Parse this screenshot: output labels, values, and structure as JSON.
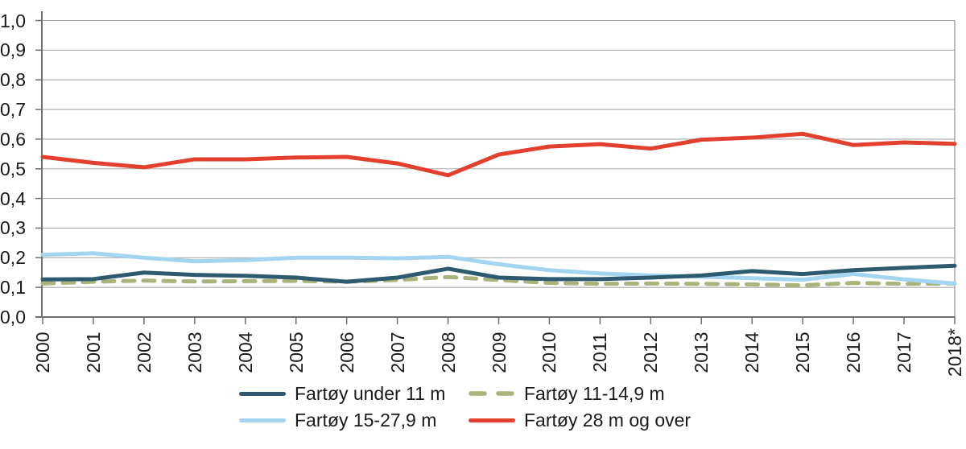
{
  "chart_data": {
    "type": "line",
    "title": "",
    "xlabel": "",
    "ylabel": "",
    "categories": [
      "2000",
      "2001",
      "2002",
      "2003",
      "2004",
      "2005",
      "2006",
      "2007",
      "2008",
      "2009",
      "2010",
      "2011",
      "2012",
      "2013",
      "2014",
      "2015",
      "2016",
      "2017",
      "2018*"
    ],
    "series": [
      {
        "name": "Fartøy under 11 m",
        "color": "#2E5A70",
        "dash": "solid",
        "values": [
          0.127,
          0.128,
          0.15,
          0.142,
          0.139,
          0.133,
          0.119,
          0.133,
          0.163,
          0.133,
          0.128,
          0.128,
          0.133,
          0.14,
          0.155,
          0.145,
          0.158,
          0.166,
          0.173
        ]
      },
      {
        "name": "Fartøy 11-14,9 m",
        "color": "#A9B47C",
        "dash": "dashed",
        "values": [
          0.113,
          0.119,
          0.123,
          0.12,
          0.121,
          0.122,
          0.119,
          0.125,
          0.135,
          0.125,
          0.115,
          0.112,
          0.113,
          0.112,
          0.11,
          0.107,
          0.115,
          0.112,
          0.113
        ]
      },
      {
        "name": "Fartøy 15-27,9 m",
        "color": "#A3D5F0",
        "dash": "solid",
        "values": [
          0.21,
          0.215,
          0.2,
          0.188,
          0.192,
          0.2,
          0.2,
          0.198,
          0.203,
          0.178,
          0.158,
          0.147,
          0.14,
          0.136,
          0.131,
          0.126,
          0.145,
          0.127,
          0.113
        ]
      },
      {
        "name": "Fartøy 28 m og over",
        "color": "#E2402C",
        "dash": "solid",
        "values": [
          0.54,
          0.52,
          0.505,
          0.532,
          0.532,
          0.538,
          0.54,
          0.518,
          0.478,
          0.548,
          0.575,
          0.583,
          0.568,
          0.598,
          0.605,
          0.618,
          0.58,
          0.589,
          0.584
        ]
      }
    ],
    "ylim": [
      0.0,
      1.0
    ],
    "ytick_step": 0.1,
    "ytick_labels": [
      "0,0",
      "0,1",
      "0,2",
      "0,3",
      "0,4",
      "0,5",
      "0,6",
      "0,7",
      "0,8",
      "0,9",
      "1,0"
    ],
    "grid": true,
    "legend_position": "bottom"
  },
  "style": {
    "axis_color": "#6F6F6F",
    "grid_color": "#A8A8A8",
    "text_color": "#1A1A1A",
    "background": "#FFFFFF"
  }
}
